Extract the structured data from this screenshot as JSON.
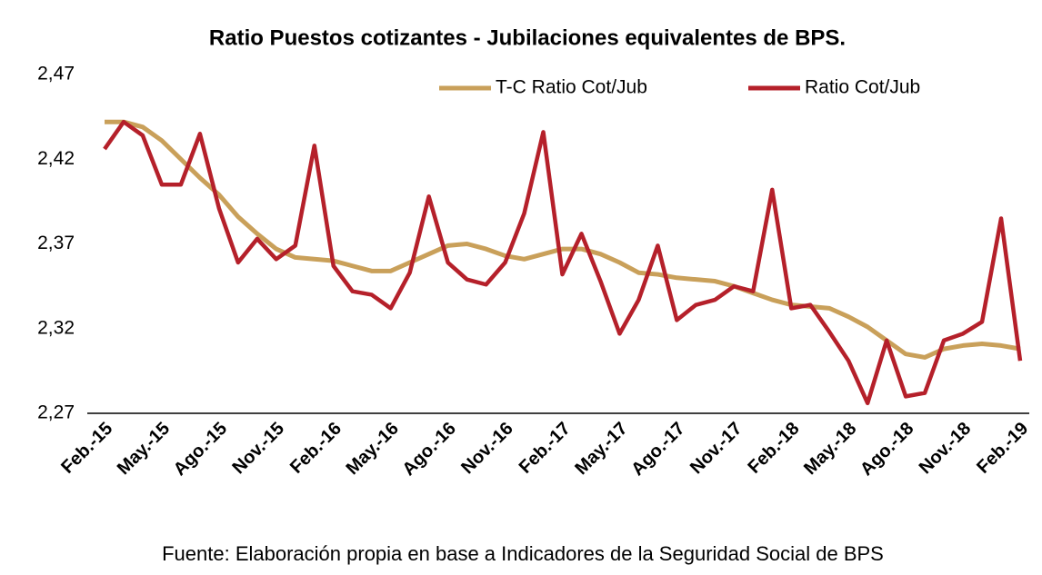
{
  "chart_data": {
    "type": "line",
    "title": "Ratio Puestos cotizantes - Jubilaciones equivalentes de BPS.",
    "source": "Fuente: Elaboración propia en base a Indicadores de la Seguridad Social de BPS",
    "categories": [
      "Feb.-15",
      null,
      null,
      "May.-15",
      null,
      null,
      "Ago.-15",
      null,
      null,
      "Nov.-15",
      null,
      null,
      "Feb.-16",
      null,
      null,
      "May.-16",
      null,
      null,
      "Ago.-16",
      null,
      null,
      "Nov.-16",
      null,
      null,
      "Feb.-17",
      null,
      null,
      "May.-17",
      null,
      null,
      "Ago.-17",
      null,
      null,
      "Nov.-17",
      null,
      null,
      "Feb.-18",
      null,
      null,
      "May.-18",
      null,
      null,
      "Ago.-18",
      null,
      null,
      "Nov.-18",
      null,
      null,
      "Feb.-19"
    ],
    "series": [
      {
        "name": "T-C Ratio Cot/Jub",
        "color": "#c9a05a",
        "values": [
          2.442,
          2.442,
          2.439,
          2.431,
          2.42,
          2.409,
          2.399,
          2.386,
          2.376,
          2.367,
          2.362,
          2.361,
          2.36,
          2.357,
          2.354,
          2.354,
          2.359,
          2.364,
          2.369,
          2.37,
          2.367,
          2.363,
          2.361,
          2.364,
          2.367,
          2.367,
          2.364,
          2.359,
          2.353,
          2.352,
          2.35,
          2.349,
          2.348,
          2.345,
          2.341,
          2.337,
          2.334,
          2.333,
          2.332,
          2.327,
          2.321,
          2.313,
          2.305,
          2.303,
          2.308,
          2.31,
          2.311,
          2.31,
          2.308
        ]
      },
      {
        "name": "Ratio Cot/Jub",
        "color": "#b5202a",
        "values": [
          2.426,
          2.442,
          2.434,
          2.405,
          2.405,
          2.435,
          2.391,
          2.359,
          2.373,
          2.361,
          2.369,
          2.428,
          2.357,
          2.342,
          2.34,
          2.332,
          2.353,
          2.398,
          2.359,
          2.349,
          2.346,
          2.359,
          2.388,
          2.436,
          2.352,
          2.376,
          2.348,
          2.317,
          2.337,
          2.369,
          2.325,
          2.334,
          2.337,
          2.345,
          2.342,
          2.402,
          2.332,
          2.334,
          2.318,
          2.301,
          2.276,
          2.313,
          2.28,
          2.282,
          2.313,
          2.317,
          2.324,
          2.385,
          2.301
        ]
      }
    ],
    "ylim": [
      2.27,
      2.47
    ],
    "yticks": [
      {
        "value": 2.27,
        "label": "2,27"
      },
      {
        "value": 2.32,
        "label": "2,32"
      },
      {
        "value": 2.37,
        "label": "2,37"
      },
      {
        "value": 2.42,
        "label": "2,42"
      },
      {
        "value": 2.47,
        "label": "2,47"
      }
    ],
    "legend": "top",
    "grid": false
  }
}
